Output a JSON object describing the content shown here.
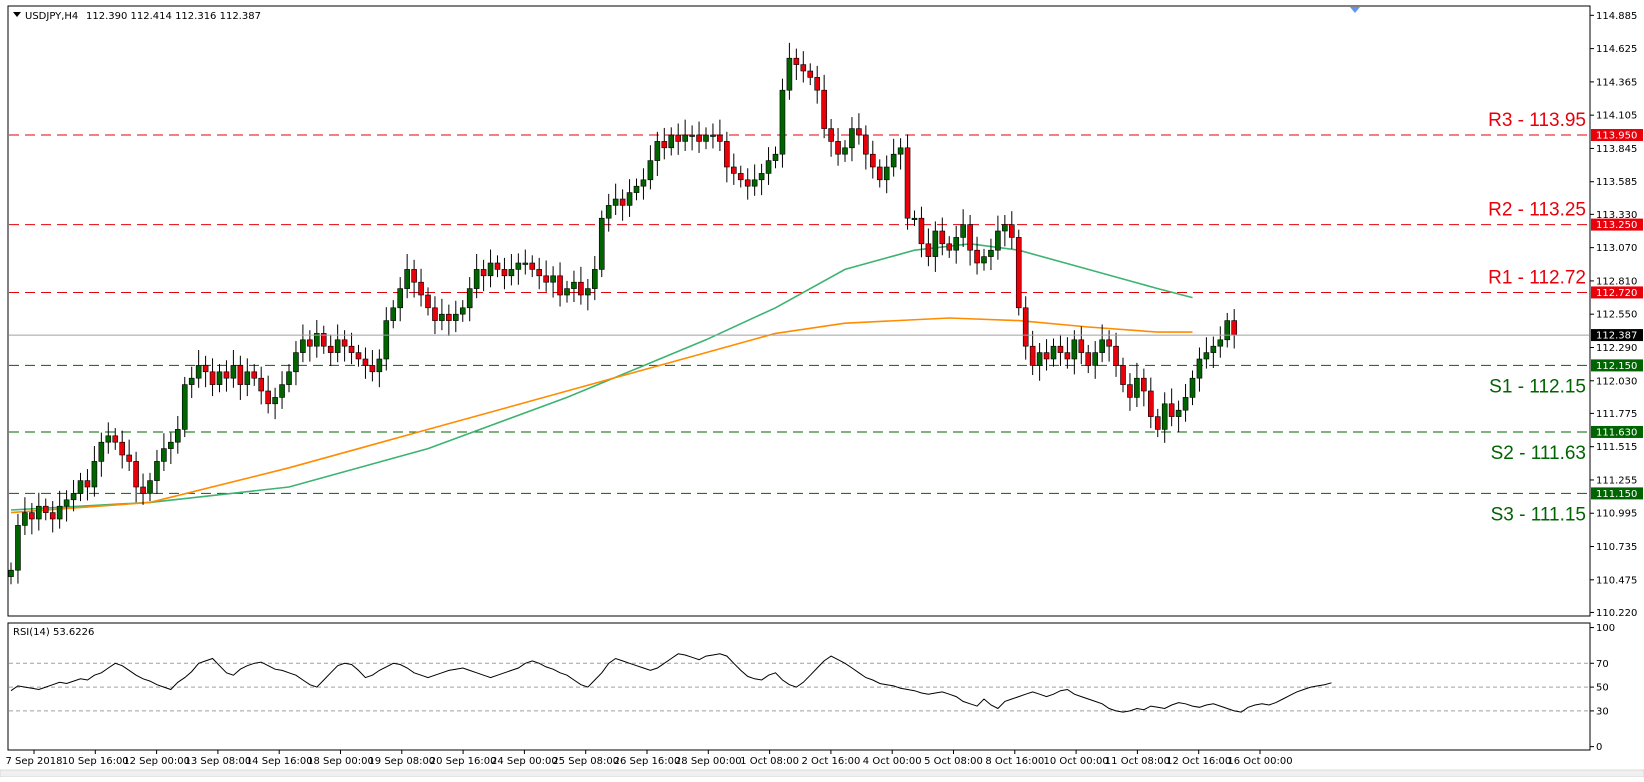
{
  "header": {
    "symbol": "USDJPY,H4",
    "ohlc": "112.390 112.414 112.316 112.387"
  },
  "rsi_header": "RSI(14) 53.6226",
  "colors": {
    "bull": "#006400",
    "bear": "#e8000b",
    "resistance": "#e8000b",
    "support": "#006400",
    "ma_green": "#3cb371",
    "ma_orange": "#ff8c00",
    "current_price_line": "#a0a0a0",
    "current_price_tag": "#000000"
  },
  "current_price": {
    "value": 112.387,
    "label": "112.387"
  },
  "chart_data": [
    {
      "type": "candlestick",
      "title": "",
      "y_axis": {
        "range": [
          110.2,
          114.95
        ],
        "ticks": [
          "114.885",
          "114.625",
          "114.365",
          "114.105",
          "113.845",
          "113.585",
          "113.330",
          "113.070",
          "112.810",
          "112.550",
          "112.290",
          "112.030",
          "111.775",
          "111.515",
          "111.255",
          "110.995",
          "110.735",
          "110.475",
          "110.220"
        ]
      },
      "x_axis": {
        "ticks": [
          "7 Sep 2018",
          "10 Sep 16:00",
          "12 Sep 00:00",
          "13 Sep 08:00",
          "14 Sep 16:00",
          "18 Sep 00:00",
          "19 Sep 08:00",
          "20 Sep 16:00",
          "24 Sep 00:00",
          "25 Sep 08:00",
          "26 Sep 16:00",
          "28 Sep 00:00",
          "1 Oct 08:00",
          "2 Oct 16:00",
          "4 Oct 00:00",
          "5 Oct 08:00",
          "8 Oct 16:00",
          "10 Oct 00:00",
          "11 Oct 08:00",
          "12 Oct 16:00",
          "16 Oct 00:00"
        ]
      },
      "close_path": [
        110.55,
        110.9,
        111.0,
        110.95,
        111.05,
        111.0,
        110.95,
        111.05,
        111.1,
        111.15,
        111.25,
        111.2,
        111.4,
        111.55,
        111.6,
        111.55,
        111.45,
        111.4,
        111.2,
        111.15,
        111.25,
        111.4,
        111.5,
        111.55,
        111.65,
        112.0,
        112.05,
        112.15,
        112.1,
        112.0,
        112.1,
        112.05,
        112.15,
        112.0,
        112.1,
        112.05,
        111.95,
        111.85,
        111.9,
        112.0,
        112.1,
        112.25,
        112.35,
        112.3,
        112.4,
        112.3,
        112.25,
        112.35,
        112.3,
        112.25,
        112.2,
        112.15,
        112.1,
        112.2,
        112.5,
        112.6,
        112.75,
        112.9,
        112.8,
        112.7,
        112.6,
        112.5,
        112.55,
        112.5,
        112.55,
        112.6,
        112.75,
        112.9,
        112.85,
        112.95,
        112.9,
        112.85,
        112.9,
        112.95,
        112.95,
        112.9,
        112.85,
        112.8,
        112.85,
        112.7,
        112.75,
        112.8,
        112.7,
        112.75,
        112.9,
        113.3,
        113.4,
        113.45,
        113.4,
        113.5,
        113.55,
        113.6,
        113.75,
        113.9,
        113.85,
        113.95,
        113.9,
        113.95,
        113.95,
        113.9,
        113.95,
        113.95,
        113.9,
        113.7,
        113.65,
        113.6,
        113.55,
        113.6,
        113.65,
        113.75,
        113.8,
        114.3,
        114.55,
        114.5,
        114.45,
        114.4,
        114.3,
        114.0,
        113.9,
        113.8,
        113.85,
        114.0,
        113.95,
        113.8,
        113.7,
        113.6,
        113.7,
        113.8,
        113.85,
        113.3,
        113.3,
        113.1,
        113.0,
        113.2,
        113.1,
        113.05,
        113.15,
        113.25,
        113.05,
        112.95,
        113.0,
        113.05,
        113.2,
        113.25,
        113.15,
        112.6,
        112.3,
        112.15,
        112.25,
        112.2,
        112.3,
        112.25,
        112.2,
        112.35,
        112.25,
        112.15,
        112.25,
        112.35,
        112.3,
        112.15,
        112.0,
        111.9,
        112.05,
        111.95,
        111.75,
        111.65,
        111.85,
        111.75,
        111.8,
        111.9,
        112.05,
        112.2,
        112.25,
        112.3,
        112.35,
        112.5,
        112.387
      ],
      "lines": [
        {
          "label": "R3 - 113.95",
          "tag": "113.950",
          "value": 113.95,
          "kind": "resistance"
        },
        {
          "label": "R2 - 113.25",
          "tag": "113.250",
          "value": 113.25,
          "kind": "resistance"
        },
        {
          "label": "R1 - 112.72",
          "tag": "112.720",
          "value": 112.72,
          "kind": "resistance"
        },
        {
          "label": "S1 - 112.15",
          "tag": "112.150",
          "value": 112.15,
          "kind": "support"
        },
        {
          "label": "S2 - 111.63",
          "tag": "111.630",
          "value": 111.63,
          "kind": "support"
        },
        {
          "label": "S3 - 111.15",
          "tag": "111.150",
          "value": 111.15,
          "kind": "support"
        }
      ],
      "moving_averages": [
        {
          "color_key": "ma_green",
          "points": [
            [
              0,
              111.02
            ],
            [
              20,
              111.08
            ],
            [
              40,
              111.2
            ],
            [
              60,
              111.5
            ],
            [
              80,
              111.9
            ],
            [
              100,
              112.35
            ],
            [
              110,
              112.6
            ],
            [
              120,
              112.9
            ],
            [
              130,
              113.05
            ],
            [
              138,
              113.1
            ],
            [
              145,
              113.05
            ],
            [
              155,
              112.9
            ],
            [
              165,
              112.75
            ],
            [
              170,
              112.68
            ]
          ]
        },
        {
          "color_key": "ma_orange",
          "points": [
            [
              0,
              111.0
            ],
            [
              20,
              111.08
            ],
            [
              40,
              111.35
            ],
            [
              60,
              111.65
            ],
            [
              80,
              111.95
            ],
            [
              100,
              112.25
            ],
            [
              110,
              112.4
            ],
            [
              120,
              112.48
            ],
            [
              135,
              112.52
            ],
            [
              145,
              112.5
            ],
            [
              155,
              112.45
            ],
            [
              165,
              112.41
            ],
            [
              170,
              112.41
            ]
          ]
        }
      ]
    },
    {
      "type": "line",
      "title": "",
      "y_axis": {
        "range": [
          -2,
          103
        ],
        "ticks": [
          "100",
          "70",
          "50",
          "30",
          "0"
        ]
      },
      "levels": [
        70,
        50,
        30
      ],
      "values": [
        47,
        51,
        50,
        49,
        48,
        50,
        52,
        54,
        53,
        55,
        57,
        56,
        60,
        62,
        66,
        70,
        68,
        64,
        60,
        57,
        55,
        52,
        50,
        48,
        54,
        58,
        63,
        70,
        72,
        74,
        68,
        62,
        60,
        65,
        68,
        70,
        71,
        68,
        65,
        64,
        62,
        60,
        56,
        52,
        50,
        56,
        62,
        68,
        70,
        69,
        64,
        58,
        60,
        64,
        67,
        70,
        69,
        66,
        62,
        60,
        58,
        60,
        62,
        64,
        65,
        66,
        64,
        62,
        60,
        58,
        60,
        62,
        64,
        66,
        70,
        72,
        70,
        67,
        65,
        62,
        60,
        56,
        52,
        50,
        56,
        62,
        70,
        74,
        72,
        70,
        68,
        66,
        64,
        66,
        70,
        74,
        78,
        77,
        75,
        73,
        76,
        77,
        78,
        76,
        70,
        64,
        59,
        57,
        56,
        60,
        62,
        56,
        52,
        50,
        54,
        60,
        66,
        72,
        76,
        73,
        70,
        66,
        62,
        58,
        56,
        53,
        52,
        51,
        49,
        48,
        47,
        45,
        44,
        45,
        46,
        44,
        42,
        38,
        36,
        34,
        40,
        35,
        32,
        38,
        40,
        42,
        44,
        46,
        44,
        42,
        44,
        47,
        48,
        44,
        42,
        40,
        38,
        36,
        32,
        30,
        29,
        30,
        32,
        31,
        34,
        33,
        32,
        35,
        37,
        36,
        34,
        33,
        35,
        36,
        34,
        32,
        30,
        29,
        33,
        35,
        36,
        35,
        37,
        40,
        43,
        46,
        48,
        50,
        51,
        52,
        53.6
      ]
    }
  ]
}
